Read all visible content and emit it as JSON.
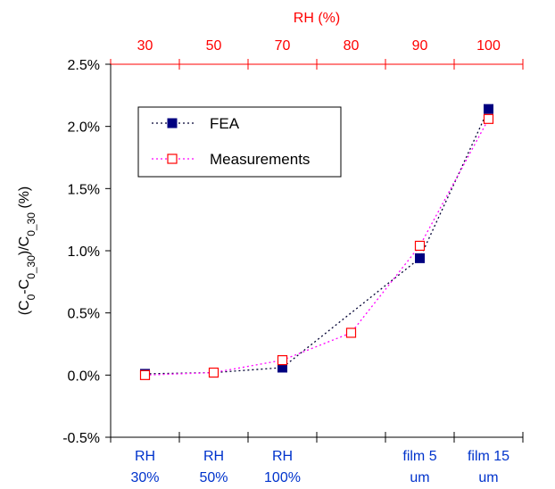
{
  "chart_data": {
    "type": "line",
    "top_axis": {
      "title": "RH (%)",
      "tick_labels": [
        "30",
        "50",
        "70",
        "80",
        "90",
        "100"
      ],
      "color": "#ff0000"
    },
    "bottom_axis": {
      "tick_labels": [
        [
          "RH",
          "30%"
        ],
        [
          "RH",
          "50%"
        ],
        [
          "RH",
          "100%"
        ],
        [
          "",
          ""
        ],
        [
          "film 5",
          "um"
        ],
        [
          "film 15",
          "um"
        ]
      ],
      "color": "#0033cc"
    },
    "y_axis": {
      "title_parts": [
        "(C",
        "0",
        "-C",
        "0_30",
        ")/C",
        "0_30",
        " (%)"
      ],
      "tick_labels": [
        "-0.5%",
        "0.0%",
        "0.5%",
        "1.0%",
        "1.5%",
        "2.0%",
        "2.5%"
      ],
      "ylim": [
        -0.5,
        2.5
      ],
      "ticks": [
        -0.5,
        0.0,
        0.5,
        1.0,
        1.5,
        2.0,
        2.5
      ]
    },
    "series": [
      {
        "name": "FEA",
        "color": "#000080",
        "line_color": "#000033",
        "marker": "filled-square",
        "points": [
          [
            0,
            0.01
          ],
          [
            1,
            0.02
          ],
          [
            2,
            0.06
          ],
          [
            4,
            0.94
          ],
          [
            5,
            2.14
          ]
        ]
      },
      {
        "name": "Measurements",
        "color": "#ff0000",
        "line_color": "#ff00ff",
        "marker": "open-square",
        "points": [
          [
            0,
            0.0
          ],
          [
            1,
            0.02
          ],
          [
            2,
            0.12
          ],
          [
            3,
            0.34
          ],
          [
            4,
            1.04
          ],
          [
            5,
            2.06
          ]
        ]
      }
    ],
    "legend": {
      "placement": "top-left"
    },
    "grid": false
  }
}
